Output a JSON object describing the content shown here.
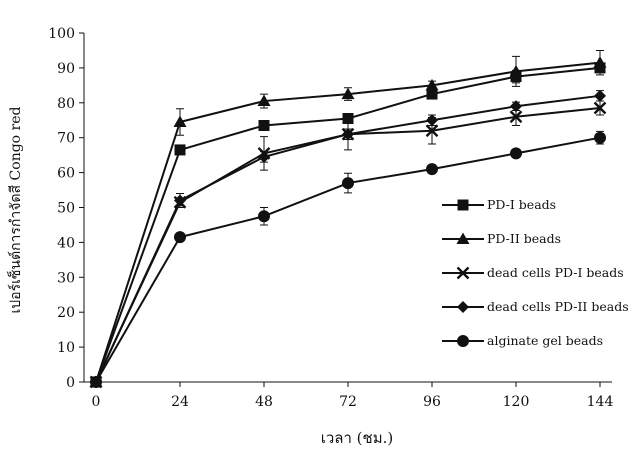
{
  "chart_data": {
    "type": "line",
    "xlabel": "เวลา (ชม.)",
    "ylabel": "เปอร์เซ็นต์การกำจัดสี Congo red",
    "x": [
      0,
      24,
      48,
      72,
      96,
      120,
      144
    ],
    "xlim": [
      0,
      144
    ],
    "ylim": [
      0,
      100
    ],
    "yticks": [
      0,
      10,
      20,
      30,
      40,
      50,
      60,
      70,
      80,
      90,
      100
    ],
    "grid": false,
    "legend_position": "right",
    "series": [
      {
        "name": "PD-I beads",
        "marker": "square",
        "values": [
          0,
          66.5,
          73.5,
          75.5,
          82.5,
          87.5,
          90.0
        ],
        "errors": [
          0,
          0.8,
          1.0,
          1.2,
          1.3,
          1.8,
          1.2
        ]
      },
      {
        "name": "PD-II beads",
        "marker": "triangle",
        "values": [
          0,
          74.5,
          80.5,
          82.5,
          85.0,
          89.0,
          91.5
        ],
        "errors": [
          0,
          3.8,
          2.0,
          1.8,
          1.2,
          4.3,
          3.5
        ]
      },
      {
        "name": "dead cells PD-I beads",
        "marker": "x",
        "values": [
          0,
          51.5,
          65.5,
          71.0,
          72.0,
          76.0,
          78.5
        ],
        "errors": [
          0,
          1.0,
          4.8,
          4.5,
          3.8,
          2.5,
          2.0
        ]
      },
      {
        "name": "dead cells PD-II beads",
        "marker": "diamond",
        "values": [
          0,
          52.0,
          64.5,
          71.0,
          75.0,
          79.0,
          82.0
        ],
        "errors": [
          0,
          2.0,
          1.5,
          1.5,
          1.5,
          1.2,
          1.5
        ]
      },
      {
        "name": "alginate gel beads",
        "marker": "circle",
        "values": [
          0,
          41.5,
          47.5,
          57.0,
          61.0,
          65.5,
          70.0
        ],
        "errors": [
          0,
          0.5,
          2.5,
          2.8,
          0.5,
          0.8,
          1.8
        ]
      }
    ]
  }
}
